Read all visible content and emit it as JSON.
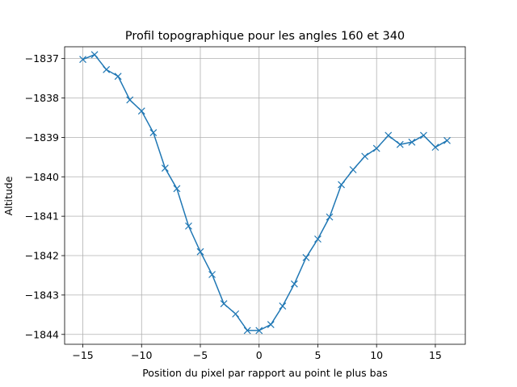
{
  "chart_data": {
    "type": "line",
    "title": "Profil topographique pour les angles 160 et 340",
    "xlabel": "Position du pixel par rapport au point le plus bas",
    "ylabel": "Altitude",
    "xlim": [
      -16.55,
      17.55
    ],
    "ylim": [
      -1844.25,
      -1836.7
    ],
    "xticks": [
      -15,
      -10,
      -5,
      0,
      5,
      10,
      15
    ],
    "xtick_labels": [
      "−15",
      "−10",
      "−5",
      "0",
      "5",
      "10",
      "15"
    ],
    "yticks": [
      -1837,
      -1838,
      -1839,
      -1840,
      -1841,
      -1842,
      -1843,
      -1844
    ],
    "ytick_labels": [
      "−1837",
      "−1838",
      "−1839",
      "−1840",
      "−1841",
      "−1842",
      "−1843",
      "−1844"
    ],
    "grid": true,
    "marker": "x",
    "color": "#1f77b4",
    "x": [
      -15,
      -14,
      -13,
      -12,
      -11,
      -10,
      -9,
      -8,
      -7,
      -6,
      -5,
      -4,
      -3,
      -2,
      -1,
      0,
      1,
      2,
      3,
      4,
      5,
      6,
      7,
      8,
      9,
      10,
      11,
      12,
      13,
      14,
      15,
      16
    ],
    "y": [
      -1837.02,
      -1836.9,
      -1837.28,
      -1837.45,
      -1838.05,
      -1838.33,
      -1838.88,
      -1839.78,
      -1840.3,
      -1841.25,
      -1841.9,
      -1842.48,
      -1843.22,
      -1843.48,
      -1843.9,
      -1843.9,
      -1843.75,
      -1843.28,
      -1842.72,
      -1842.05,
      -1841.58,
      -1841.02,
      -1840.2,
      -1839.82,
      -1839.48,
      -1839.28,
      -1838.95,
      -1839.18,
      -1839.12,
      -1838.95,
      -1839.25,
      -1839.08
    ]
  }
}
